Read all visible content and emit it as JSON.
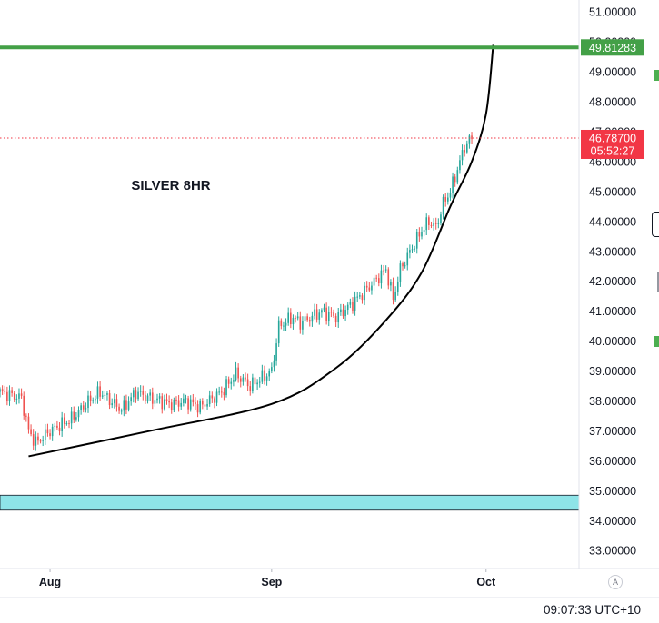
{
  "chart_data": {
    "type": "candlestick",
    "symbol_annotation": "SILVER 8HR",
    "ylim": [
      32.4,
      51.4
    ],
    "y_ticks": [
      "33.00000",
      "34.00000",
      "35.00000",
      "36.00000",
      "37.00000",
      "38.00000",
      "39.00000",
      "40.00000",
      "41.00000",
      "42.00000",
      "43.00000",
      "44.00000",
      "45.00000",
      "46.00000",
      "47.00000",
      "48.00000",
      "49.00000",
      "50.00000",
      "51.00000"
    ],
    "x_ticks": [
      {
        "label": "Aug",
        "date": "2025-08-01"
      },
      {
        "label": "Sep",
        "date": "2025-09-01"
      },
      {
        "label": "Oct",
        "date": "2025-10-01"
      }
    ],
    "x_range": [
      "2025-07-25",
      "2025-10-14"
    ],
    "bars_per_day": 3,
    "colors": {
      "up": "#26a69a",
      "down": "#ef5350",
      "resistance": "#43a047",
      "support_zone": "#8ee4e8",
      "curve": "#000000",
      "last_price": "#f23645"
    },
    "resistance_line": {
      "value": 49.81283,
      "label": "49.81283"
    },
    "support_zone": [
      34.35,
      34.85
    ],
    "last_price": {
      "value": 46.787,
      "label": "46.78700",
      "countdown": "05:52:27"
    },
    "curve": [
      {
        "date": "2025-07-29",
        "value": 36.15
      },
      {
        "date": "2025-08-15",
        "value": 37.0
      },
      {
        "date": "2025-09-01",
        "value": 37.9
      },
      {
        "date": "2025-09-10",
        "value": 39.1
      },
      {
        "date": "2025-09-17",
        "value": 40.7
      },
      {
        "date": "2025-09-22",
        "value": 42.3
      },
      {
        "date": "2025-09-26",
        "value": 44.5
      },
      {
        "date": "2025-09-29",
        "value": 46.0
      },
      {
        "date": "2025-10-01",
        "value": 47.6
      },
      {
        "date": "2025-10-02",
        "value": 49.9
      }
    ],
    "close_path": [
      {
        "date": "2025-07-25",
        "value": 38.3
      },
      {
        "date": "2025-07-28",
        "value": 38.1
      },
      {
        "date": "2025-07-29",
        "value": 37.0
      },
      {
        "date": "2025-07-30",
        "value": 36.6
      },
      {
        "date": "2025-08-01",
        "value": 37.0
      },
      {
        "date": "2025-08-04",
        "value": 37.4
      },
      {
        "date": "2025-08-06",
        "value": 37.9
      },
      {
        "date": "2025-08-08",
        "value": 38.3
      },
      {
        "date": "2025-08-11",
        "value": 37.7
      },
      {
        "date": "2025-08-13",
        "value": 38.3
      },
      {
        "date": "2025-08-15",
        "value": 38.1
      },
      {
        "date": "2025-08-18",
        "value": 37.9
      },
      {
        "date": "2025-08-20",
        "value": 38.0
      },
      {
        "date": "2025-08-22",
        "value": 37.8
      },
      {
        "date": "2025-08-25",
        "value": 38.3
      },
      {
        "date": "2025-08-27",
        "value": 38.9
      },
      {
        "date": "2025-08-29",
        "value": 38.5
      },
      {
        "date": "2025-09-01",
        "value": 39.0
      },
      {
        "date": "2025-09-02",
        "value": 40.5
      },
      {
        "date": "2025-09-04",
        "value": 40.8
      },
      {
        "date": "2025-09-05",
        "value": 40.6
      },
      {
        "date": "2025-09-08",
        "value": 41.0
      },
      {
        "date": "2025-09-10",
        "value": 40.8
      },
      {
        "date": "2025-09-12",
        "value": 41.2
      },
      {
        "date": "2025-09-15",
        "value": 41.9
      },
      {
        "date": "2025-09-17",
        "value": 42.4
      },
      {
        "date": "2025-09-18",
        "value": 41.4
      },
      {
        "date": "2025-09-19",
        "value": 42.4
      },
      {
        "date": "2025-09-22",
        "value": 43.7
      },
      {
        "date": "2025-09-23",
        "value": 44.0
      },
      {
        "date": "2025-09-24",
        "value": 43.8
      },
      {
        "date": "2025-09-25",
        "value": 44.6
      },
      {
        "date": "2025-09-26",
        "value": 45.0
      },
      {
        "date": "2025-09-28",
        "value": 46.5
      },
      {
        "date": "2025-09-29",
        "value": 46.8
      }
    ],
    "footer": {
      "clock": "09:07:33 UTC+10",
      "auto_button": "A"
    }
  }
}
